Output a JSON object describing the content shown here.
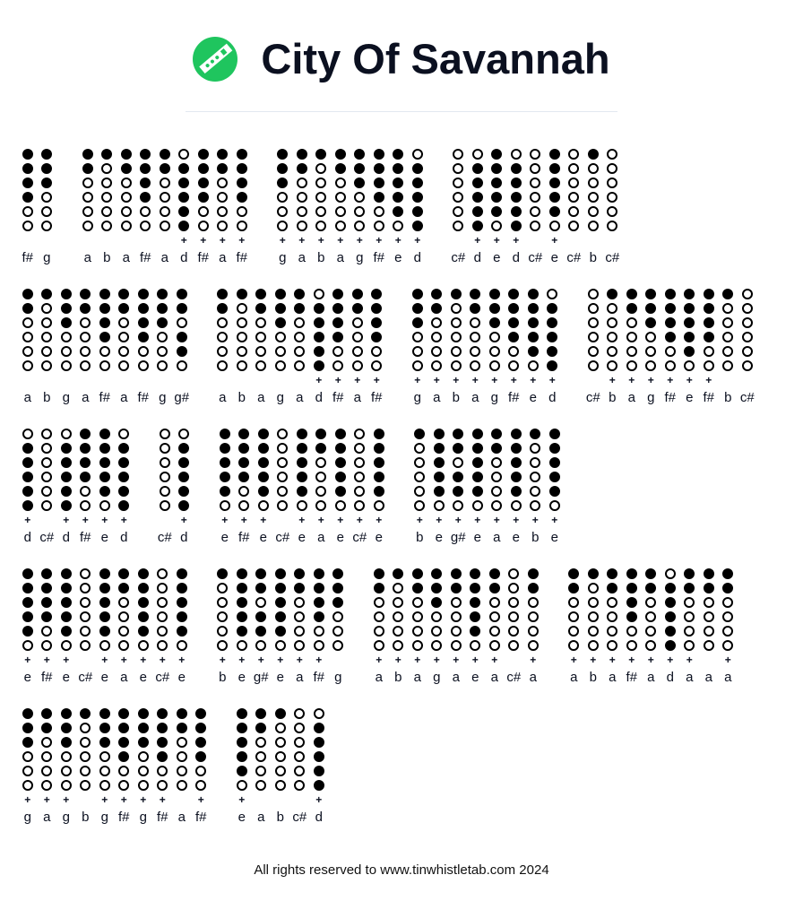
{
  "title": "City Of Savannah",
  "logo_icon": "tin-whistle-icon",
  "colors": {
    "logo": "#1fc55e",
    "text": "#0b1020",
    "divider": "#e2e8f0"
  },
  "fingerings": {
    "d": "111111",
    "e": "111110",
    "f#": "111100",
    "g": "111000",
    "g#": "110110",
    "a": "110000",
    "b": "100000",
    "c#": "000000",
    "d+": "011111"
  },
  "octave_mark": "+",
  "rows": [
    [
      [
        "f#",
        "g"
      ],
      [
        "a",
        "b",
        "a",
        "f#",
        "a",
        "d+",
        "f#+",
        "a+",
        "f#+"
      ],
      [
        "g+",
        "a+",
        "b+",
        "a+",
        "g+",
        "f#+",
        "e+",
        "d+"
      ],
      [
        "c#",
        "d+",
        "e+",
        "d+",
        "c#",
        "e+",
        "c#",
        "b",
        "c#"
      ]
    ],
    [
      [
        "a",
        "b",
        "g",
        "a",
        "f#",
        "a",
        "f#",
        "g",
        "g#"
      ],
      [
        "a",
        "b",
        "a",
        "g",
        "a",
        "d+",
        "f#+",
        "a+",
        "f#+"
      ],
      [
        "g+",
        "a+",
        "b+",
        "a+",
        "g+",
        "f#+",
        "e+",
        "d+"
      ],
      [
        "c#",
        "b+",
        "a+",
        "g+",
        "f#+",
        "e+",
        "f#+",
        "b",
        "c#"
      ]
    ],
    [
      [
        "d+",
        "c#",
        "d+",
        "f#+",
        "e+",
        "d+"
      ],
      [
        "c#",
        "d+"
      ],
      [
        "e+",
        "f#+",
        "e+",
        "c#",
        "e+",
        "a+",
        "e+",
        "c#+",
        "e+"
      ],
      [
        "b+",
        "e+",
        "g#+",
        "e+",
        "a+",
        "e+",
        "b+",
        "e+"
      ]
    ],
    [
      [
        "e+",
        "f#+",
        "e+",
        "c#",
        "e+",
        "a+",
        "e+",
        "c#+",
        "e+"
      ],
      [
        "b+",
        "e+",
        "g#+",
        "e+",
        "a+",
        "f#+",
        "g"
      ],
      [
        "a+",
        "b+",
        "a+",
        "g+",
        "a+",
        "e+",
        "a+",
        "c#",
        "a+"
      ],
      [
        "a+",
        "b+",
        "a+",
        "f#+",
        "a+",
        "d+",
        "a+",
        "a",
        "a+"
      ]
    ],
    [
      [
        "g+",
        "a+",
        "g+",
        "b",
        "g+",
        "f#+",
        "g+",
        "f#+",
        "a",
        "f#+"
      ],
      [
        "e+",
        "a",
        "b",
        "c#",
        "d+"
      ]
    ]
  ],
  "footer": "All rights reserved to www.tinwhistletab.com 2024"
}
